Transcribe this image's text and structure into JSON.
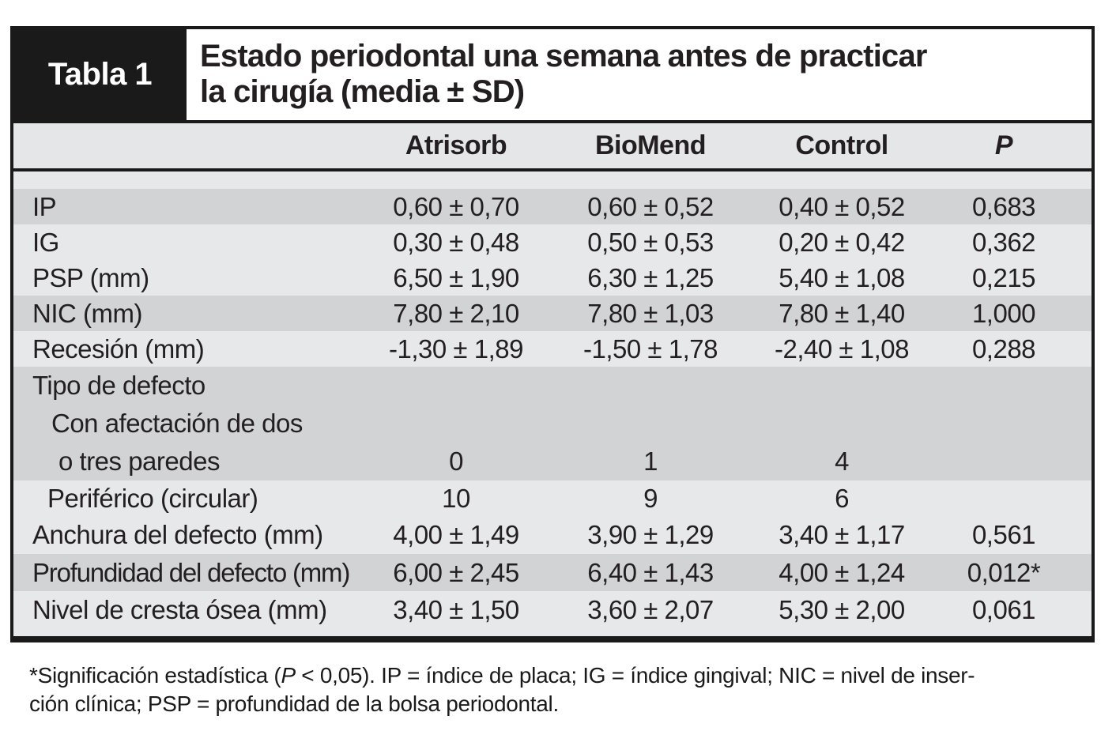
{
  "figure": {
    "table_label": "Tabla 1",
    "title_line1": "Estado periodontal una semana antes de practicar",
    "title_line2": "la cirugía (media ± SD)"
  },
  "columns": [
    "Atrisorb",
    "BioMend",
    "Control",
    "P"
  ],
  "rows": [
    {
      "label": "IP",
      "values": [
        "0,60 ± 0,70",
        "0,60 ± 0,52",
        "0,40 ± 0,52",
        "0,683"
      ]
    },
    {
      "label": "IG",
      "values": [
        "0,30 ± 0,48",
        "0,50 ± 0,53",
        "0,20 ± 0,42",
        "0,362"
      ]
    },
    {
      "label": "PSP (mm)",
      "values": [
        "6,50 ± 1,90",
        "6,30 ± 1,25",
        "5,40 ± 1,08",
        "0,215"
      ]
    },
    {
      "label": "NIC (mm)",
      "values": [
        "7,80 ± 2,10",
        "7,80 ± 1,03",
        "7,80 ± 1,40",
        "1,000"
      ]
    },
    {
      "label": "Recesión (mm)",
      "values": [
        "-1,30 ± 1,89",
        "-1,50 ± 1,78",
        "-2,40 ± 1,08",
        "0,288"
      ]
    },
    {
      "label": "Tipo de defecto",
      "values": [
        "",
        "",
        "",
        ""
      ]
    },
    {
      "label": "Con afectación de dos",
      "values": [
        "",
        "",
        "",
        ""
      ]
    },
    {
      "label": "o tres paredes",
      "values": [
        "0",
        "1",
        "4",
        ""
      ]
    },
    {
      "label": "Periférico (circular)",
      "values": [
        "10",
        "9",
        "6",
        ""
      ]
    },
    {
      "label": "Anchura del defecto (mm)",
      "values": [
        "4,00 ± 1,49",
        "3,90 ± 1,29",
        "3,40 ± 1,17",
        "0,561"
      ]
    },
    {
      "label": "Profundidad del defecto (mm)",
      "values": [
        "6,00 ± 2,45",
        "6,40 ± 1,43",
        "4,00 ± 1,24",
        "0,012*"
      ]
    },
    {
      "label": "Nivel de cresta ósea (mm)",
      "values": [
        "3,40 ± 1,50",
        "3,60 ± 2,07",
        "5,30 ± 2,00",
        "0,061"
      ]
    }
  ],
  "footnote": {
    "line1_pre": "*Significación estadística (",
    "line1_p": "P",
    "line1_post": " < 0,05). IP = índice de placa; IG = índice gingival; NIC = nivel de inser-",
    "line2": "ción clínica; PSP = profundidad de la bolsa periodontal."
  },
  "colors": {
    "border_black": "#1a1a1a",
    "header_band": "#e5e6e8",
    "row_light": "#e7e8ea",
    "row_dark": "#d2d3d4",
    "text": "#231f20"
  }
}
